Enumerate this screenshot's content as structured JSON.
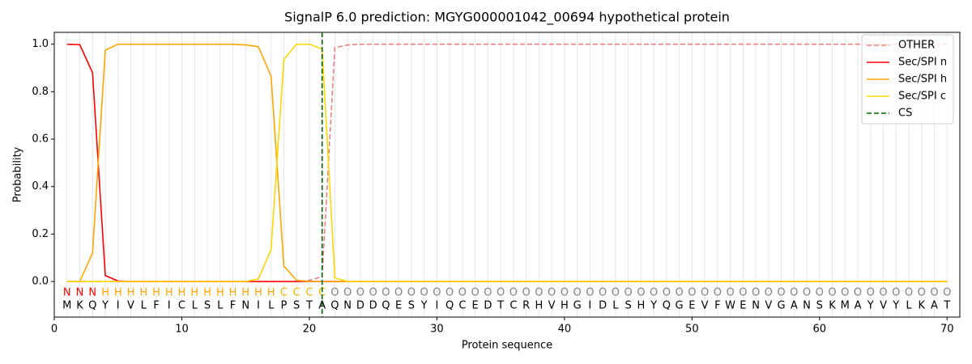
{
  "chart_data": {
    "type": "line",
    "title": "SignalP 6.0 prediction: MGYG000001042_00694 hypothetical protein",
    "xlabel": "Protein sequence",
    "ylabel": "Probability",
    "xlim": [
      0,
      71
    ],
    "ylim": [
      -0.15,
      1.05
    ],
    "xticks": [
      0,
      10,
      20,
      30,
      40,
      50,
      60,
      70
    ],
    "yticks": [
      {
        "value": 0,
        "label": "0.0"
      },
      0.2,
      0.4,
      0.6,
      0.8,
      {
        "value": 1,
        "label": "1.0"
      }
    ],
    "xgrid_minor": true,
    "legend": "upper right",
    "x": [
      1,
      2,
      3,
      4,
      5,
      6,
      7,
      8,
      9,
      10,
      11,
      12,
      13,
      14,
      15,
      16,
      17,
      18,
      19,
      20,
      21,
      22,
      23,
      24,
      25,
      26,
      27,
      28,
      29,
      30,
      31,
      32,
      33,
      34,
      35,
      36,
      37,
      38,
      39,
      40,
      41,
      42,
      43,
      44,
      45,
      46,
      47,
      48,
      49,
      50,
      51,
      52,
      53,
      54,
      55,
      56,
      57,
      58,
      59,
      60,
      61,
      62,
      63,
      64,
      65,
      66,
      67,
      68,
      69,
      70
    ],
    "residues": [
      "M",
      "K",
      "Q",
      "Y",
      "I",
      "V",
      "L",
      "F",
      "I",
      "C",
      "L",
      "S",
      "L",
      "F",
      "N",
      "I",
      "L",
      "P",
      "S",
      "T",
      "A",
      "Q",
      "N",
      "D",
      "D",
      "Q",
      "E",
      "S",
      "Y",
      "I",
      "Q",
      "C",
      "E",
      "D",
      "T",
      "C",
      "R",
      "H",
      "V",
      "H",
      "G",
      "I",
      "D",
      "L",
      "S",
      "H",
      "Y",
      "Q",
      "G",
      "E",
      "V",
      "F",
      "W",
      "E",
      "N",
      "V",
      "G",
      "A",
      "N",
      "S",
      "K",
      "M",
      "A",
      "Y",
      "V",
      "Y",
      "L",
      "K",
      "A",
      "T"
    ],
    "states": [
      "N",
      "N",
      "N",
      "H",
      "H",
      "H",
      "H",
      "H",
      "H",
      "H",
      "H",
      "H",
      "H",
      "H",
      "H",
      "H",
      "H",
      "C",
      "C",
      "C",
      "C",
      "O",
      "O",
      "O",
      "O",
      "O",
      "O",
      "O",
      "O",
      "O",
      "O",
      "O",
      "O",
      "O",
      "O",
      "O",
      "O",
      "O",
      "O",
      "O",
      "O",
      "O",
      "O",
      "O",
      "O",
      "O",
      "O",
      "O",
      "O",
      "O",
      "O",
      "O",
      "O",
      "O",
      "O",
      "O",
      "O",
      "O",
      "O",
      "O",
      "O",
      "O",
      "O",
      "O",
      "O",
      "O",
      "O",
      "O",
      "O",
      "O"
    ],
    "state_colors": {
      "N": "#ff0000",
      "H": "#ffa500",
      "C": "#e6b800",
      "O": "#808080"
    },
    "series": [
      {
        "name": "OTHER",
        "color": "#f08080",
        "dashed": true,
        "values": [
          0,
          0,
          0,
          0,
          0,
          0,
          0,
          0,
          0,
          0,
          0,
          0,
          0,
          0,
          0,
          0,
          0,
          0,
          0,
          0.005,
          0.02,
          0.985,
          0.997,
          1,
          1,
          1,
          1,
          1,
          1,
          1,
          1,
          1,
          1,
          1,
          1,
          1,
          1,
          1,
          1,
          1,
          1,
          1,
          1,
          1,
          1,
          1,
          1,
          1,
          1,
          1,
          1,
          1,
          1,
          1,
          1,
          1,
          1,
          1,
          1,
          1,
          1,
          1,
          1,
          1,
          1,
          1,
          1,
          1,
          1,
          1
        ]
      },
      {
        "name": "Sec/SPI n",
        "color": "#ff0000",
        "dashed": false,
        "values": [
          1,
          0.998,
          0.88,
          0.025,
          0.002,
          0,
          0,
          0,
          0,
          0,
          0,
          0,
          0,
          0,
          0,
          0,
          0,
          0,
          0,
          0,
          0,
          0,
          0,
          0,
          0,
          0,
          0,
          0,
          0,
          0,
          0,
          0,
          0,
          0,
          0,
          0,
          0,
          0,
          0,
          0,
          0,
          0,
          0,
          0,
          0,
          0,
          0,
          0,
          0,
          0,
          0,
          0,
          0,
          0,
          0,
          0,
          0,
          0,
          0,
          0,
          0,
          0,
          0,
          0,
          0,
          0,
          0,
          0,
          0,
          0
        ]
      },
      {
        "name": "Sec/SPI h",
        "color": "#ffa500",
        "dashed": false,
        "values": [
          0,
          0,
          0.12,
          0.975,
          1,
          1,
          1,
          1,
          1,
          1,
          1,
          1,
          1,
          1,
          0.997,
          0.99,
          0.865,
          0.065,
          0.005,
          0,
          0,
          0,
          0,
          0,
          0,
          0,
          0,
          0,
          0,
          0,
          0,
          0,
          0,
          0,
          0,
          0,
          0,
          0,
          0,
          0,
          0,
          0,
          0,
          0,
          0,
          0,
          0,
          0,
          0,
          0,
          0,
          0,
          0,
          0,
          0,
          0,
          0,
          0,
          0,
          0,
          0,
          0,
          0,
          0,
          0,
          0,
          0,
          0,
          0,
          0
        ]
      },
      {
        "name": "Sec/SPI c",
        "color": "#ffd700",
        "dashed": false,
        "values": [
          0,
          0,
          0,
          0,
          0,
          0,
          0,
          0,
          0,
          0,
          0,
          0,
          0,
          0,
          0,
          0.01,
          0.135,
          0.935,
          1,
          1,
          0.98,
          0.015,
          0,
          0,
          0,
          0,
          0,
          0,
          0,
          0,
          0,
          0,
          0,
          0,
          0,
          0,
          0,
          0,
          0,
          0,
          0,
          0,
          0,
          0,
          0,
          0,
          0,
          0,
          0,
          0,
          0,
          0,
          0,
          0,
          0,
          0,
          0,
          0,
          0,
          0,
          0,
          0,
          0,
          0,
          0,
          0,
          0,
          0,
          0,
          0
        ]
      }
    ],
    "cs": {
      "name": "CS",
      "x": 21,
      "color": "#006400"
    }
  }
}
